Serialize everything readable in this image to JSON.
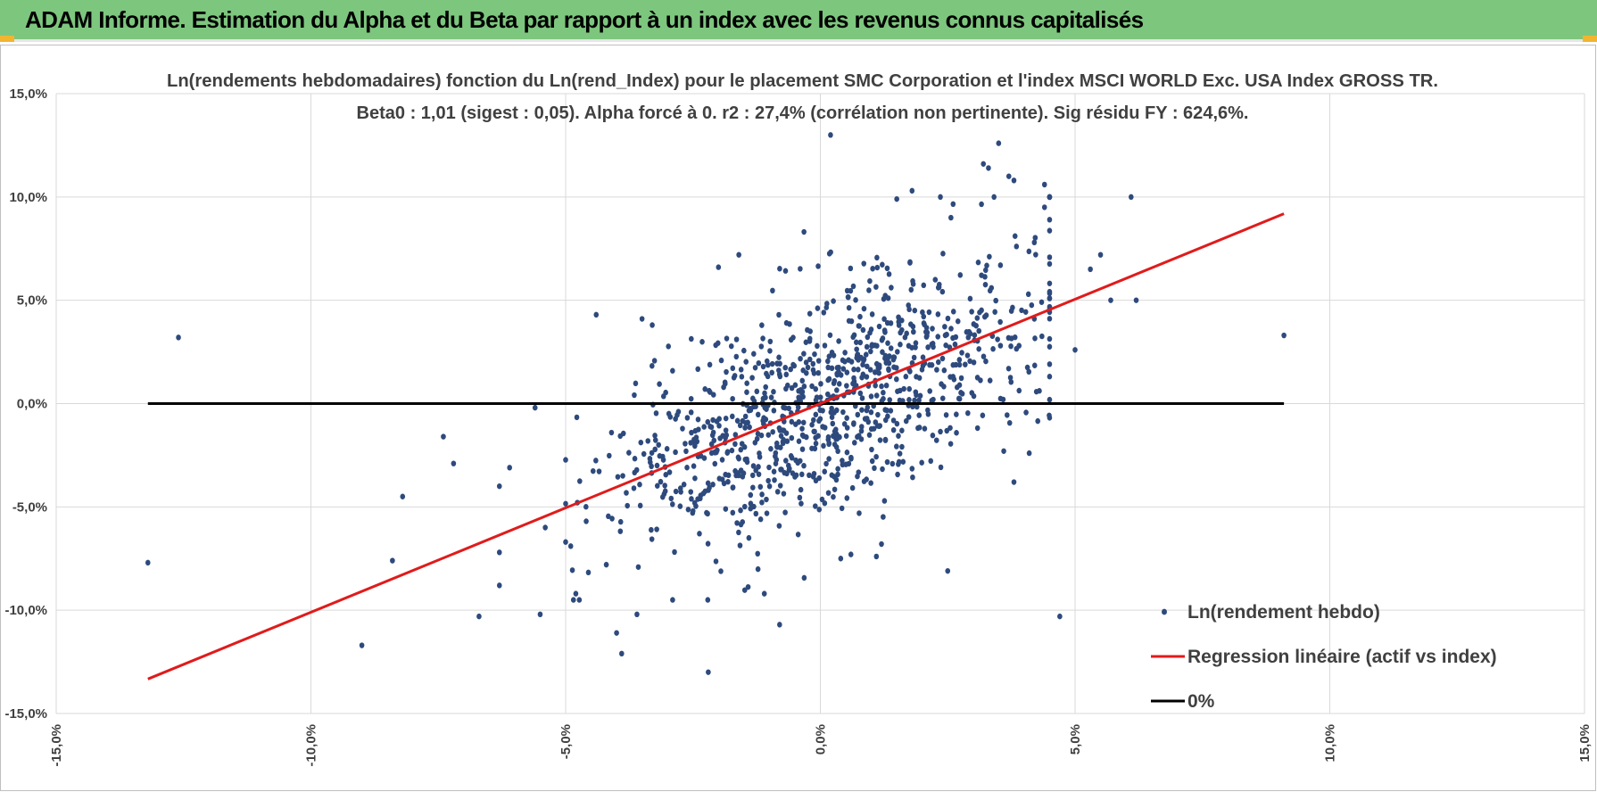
{
  "header": {
    "title": "ADAM Informe. Estimation du Alpha et du Beta par rapport à un index avec les revenus connus capitalisés",
    "background": "#7dc67e"
  },
  "chart_data": {
    "type": "scatter",
    "title": "Ln(rendements hebdomadaires) fonction du Ln(rend_Index) pour le placement SMC Corporation et l'index MSCI WORLD Exc. USA Index GROSS TR.",
    "subtitle": "Beta0 : 1,01 (sigest : 0,05). Alpha forcé à 0. r2 : 27,4% (corrélation non pertinente). Sig résidu FY : 624,6%.",
    "xlabel": "",
    "ylabel": "",
    "xlim": [
      -0.15,
      0.15
    ],
    "ylim": [
      -0.15,
      0.15
    ],
    "x_ticks": [
      -0.15,
      -0.1,
      -0.05,
      0.0,
      0.05,
      0.1,
      0.15
    ],
    "x_tick_labels": [
      "-15,0%",
      "-10,0%",
      "-5,0%",
      "0,0%",
      "5,0%",
      "10,0%",
      "15,0%"
    ],
    "y_ticks": [
      0.15,
      0.1,
      0.05,
      0.0,
      -0.05,
      -0.1,
      -0.15
    ],
    "y_tick_labels": [
      "15,0%",
      "10,0%",
      "5,0%",
      "0,0%",
      "-5,0%",
      "-10,0%",
      "-15,0%"
    ],
    "grid": true,
    "legend_position": "bottom-right",
    "beta": 1.01,
    "series": [
      {
        "name": "Ln(rendement hebdo)",
        "kind": "points",
        "color": "#2e4a7d",
        "cluster": {
          "count": 1000,
          "x_mean": 0.002,
          "x_sd": 0.021,
          "beta": 1.01,
          "resid_sd": 0.031
        },
        "points": [
          [
            -0.132,
            -0.077
          ],
          [
            -0.126,
            0.032
          ],
          [
            -0.09,
            -0.117
          ],
          [
            -0.082,
            -0.045
          ],
          [
            -0.084,
            -0.076
          ],
          [
            -0.074,
            -0.016
          ],
          [
            -0.072,
            -0.029
          ],
          [
            -0.067,
            -0.103
          ],
          [
            -0.063,
            -0.088
          ],
          [
            -0.063,
            -0.072
          ],
          [
            -0.063,
            -0.04
          ],
          [
            -0.061,
            -0.031
          ],
          [
            -0.056,
            -0.002
          ],
          [
            -0.055,
            -0.102
          ],
          [
            -0.054,
            -0.06
          ],
          [
            -0.044,
            0.043
          ],
          [
            -0.048,
            -0.092
          ],
          [
            -0.049,
            -0.069
          ],
          [
            -0.04,
            -0.111
          ],
          [
            -0.039,
            -0.121
          ],
          [
            -0.036,
            -0.102
          ],
          [
            -0.022,
            -0.13
          ],
          [
            -0.035,
            0.041
          ],
          [
            -0.033,
            0.038
          ],
          [
            -0.029,
            -0.095
          ],
          [
            -0.016,
            0.072
          ],
          [
            -0.02,
            0.066
          ],
          [
            0.002,
            0.13
          ],
          [
            0.035,
            0.126
          ],
          [
            0.032,
            0.116
          ],
          [
            0.037,
            0.11
          ],
          [
            0.033,
            0.114
          ],
          [
            0.044,
            0.106
          ],
          [
            0.061,
            0.1
          ],
          [
            0.038,
            0.108
          ],
          [
            0.044,
            0.095
          ],
          [
            0.042,
            0.078
          ],
          [
            0.018,
            0.103
          ],
          [
            0.015,
            0.099
          ],
          [
            0.062,
            0.05
          ],
          [
            0.055,
            0.072
          ],
          [
            0.053,
            0.065
          ],
          [
            0.057,
            0.05
          ],
          [
            0.05,
            0.026
          ],
          [
            0.047,
            -0.103
          ],
          [
            0.091,
            0.033
          ],
          [
            0.042,
            0.041
          ],
          [
            0.039,
            0.028
          ],
          [
            0.041,
            -0.024
          ],
          [
            0.036,
            -0.023
          ],
          [
            0.038,
            -0.038
          ],
          [
            0.025,
            -0.081
          ],
          [
            0.012,
            -0.068
          ],
          [
            0.011,
            -0.074
          ],
          [
            -0.008,
            -0.107
          ],
          [
            -0.011,
            -0.092
          ],
          [
            0.006,
            -0.073
          ],
          [
            0.004,
            -0.075
          ]
        ]
      },
      {
        "name": "Regression linéaire (actif vs index)",
        "kind": "line",
        "color": "#e01b1b",
        "x": [
          -0.132,
          0.091
        ],
        "y": [
          -0.1333,
          0.0919
        ]
      },
      {
        "name": "0%",
        "kind": "line",
        "color": "#000000",
        "x": [
          -0.132,
          0.091
        ],
        "y": [
          0.0,
          0.0
        ]
      }
    ]
  }
}
